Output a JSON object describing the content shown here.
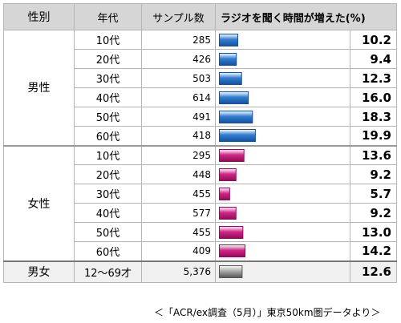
{
  "header": {
    "gender": "性別",
    "age": "年代",
    "samples": "サンプル数",
    "metric": "ラジオを聞く時間が増えた(%)"
  },
  "groups": [
    {
      "label": "男性",
      "rows": [
        {
          "age": "10代",
          "n": "285",
          "pct": "10.2"
        },
        {
          "age": "20代",
          "n": "426",
          "pct": "9.4"
        },
        {
          "age": "30代",
          "n": "503",
          "pct": "12.3"
        },
        {
          "age": "40代",
          "n": "614",
          "pct": "16.0"
        },
        {
          "age": "50代",
          "n": "491",
          "pct": "18.3"
        },
        {
          "age": "60代",
          "n": "418",
          "pct": "19.9"
        }
      ]
    },
    {
      "label": "女性",
      "rows": [
        {
          "age": "10代",
          "n": "295",
          "pct": "13.6"
        },
        {
          "age": "20代",
          "n": "448",
          "pct": "9.2"
        },
        {
          "age": "30代",
          "n": "455",
          "pct": "5.7"
        },
        {
          "age": "40代",
          "n": "577",
          "pct": "9.2"
        },
        {
          "age": "50代",
          "n": "455",
          "pct": "13.0"
        },
        {
          "age": "60代",
          "n": "409",
          "pct": "14.2"
        }
      ]
    }
  ],
  "total": {
    "label": "男女",
    "age": "12〜69才",
    "n": "5,376",
    "pct": "12.6"
  },
  "source": "＜「ACR/ex調査（5月）」東京50km圏データより＞",
  "chart_data": {
    "type": "bar",
    "categories": [
      "男性 10代",
      "男性 20代",
      "男性 30代",
      "男性 40代",
      "男性 50代",
      "男性 60代",
      "女性 10代",
      "女性 20代",
      "女性 30代",
      "女性 40代",
      "女性 50代",
      "女性 60代",
      "男女 12〜69才"
    ],
    "values": [
      10.2,
      9.4,
      12.3,
      16.0,
      18.3,
      19.9,
      13.6,
      9.2,
      5.7,
      9.2,
      13.0,
      14.2,
      12.6
    ],
    "xlim": [
      0,
      70
    ],
    "colors": {
      "男性": "#2e7fd6",
      "女性": "#d6248a",
      "男女": "#a8a8a8"
    },
    "grid": false
  }
}
